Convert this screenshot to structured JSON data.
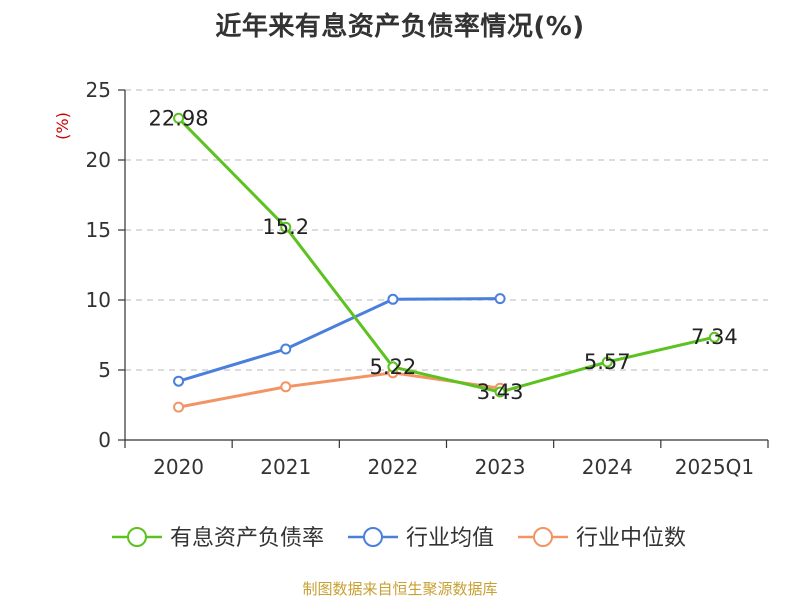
{
  "chart_data": {
    "type": "line",
    "title": "近年来有息资产负债率情况(%)",
    "ylabel": "(%)",
    "xlabel": "",
    "categories": [
      "2020",
      "2021",
      "2022",
      "2023",
      "2024",
      "2025Q1"
    ],
    "ylim": [
      0,
      25
    ],
    "yticks": [
      0,
      5,
      10,
      15,
      20,
      25
    ],
    "grid": true,
    "legend_position": "bottom",
    "series": [
      {
        "name": "有息资产负债率",
        "color": "#5cc21f",
        "values": [
          22.98,
          15.2,
          5.22,
          3.43,
          5.57,
          7.34
        ],
        "data_labels": [
          "22.98",
          "15.2",
          "5.22",
          "3.43",
          "5.57",
          "7.34"
        ]
      },
      {
        "name": "行业均值",
        "color": "#4a7fdc",
        "values": [
          4.2,
          6.5,
          10.05,
          10.1,
          null,
          null
        ]
      },
      {
        "name": "行业中位数",
        "color": "#f29464",
        "values": [
          2.35,
          3.8,
          4.8,
          3.7,
          null,
          null
        ]
      }
    ]
  },
  "footer": {
    "source": "制图数据来自恒生聚源数据库"
  }
}
